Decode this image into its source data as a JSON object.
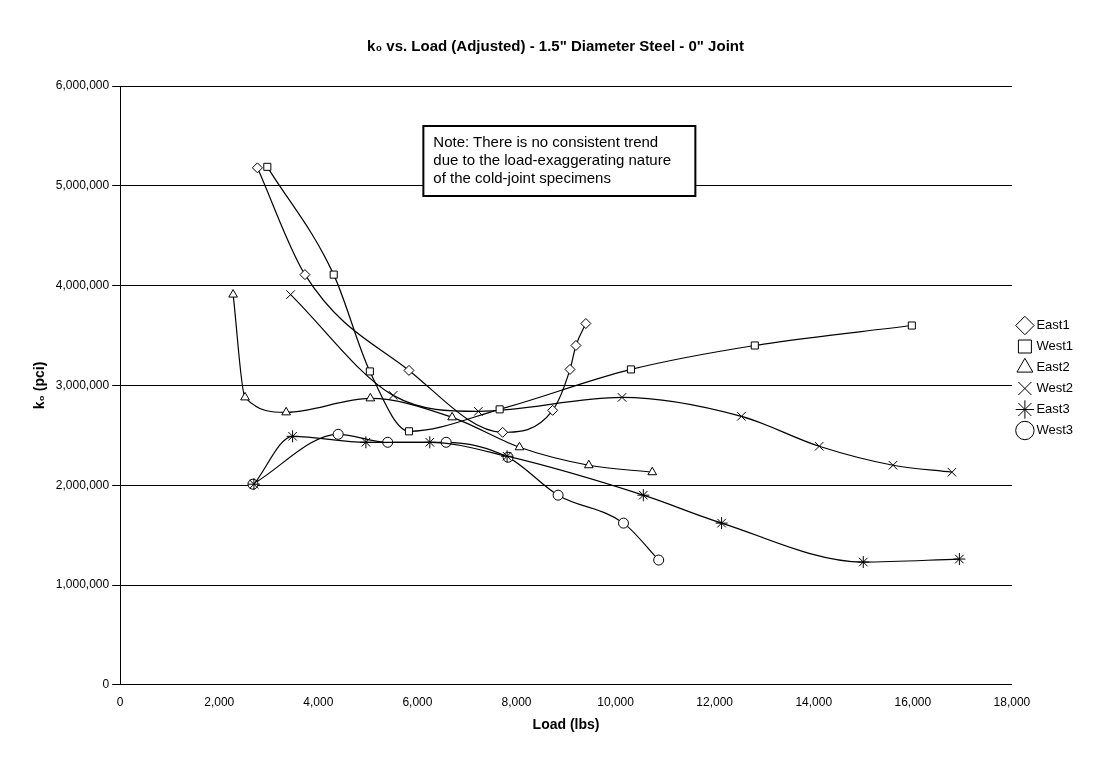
{
  "chart_data": {
    "type": "line",
    "title": "k₀ vs. Load (Adjusted) - 1.5\" Diameter Steel - 0\" Joint",
    "xlabel": "Load (lbs)",
    "ylabel": "k₀ (pci)",
    "annotations": [
      "Note: There is no consistent trend due to the load-exaggerating nature of the cold-joint specimens"
    ],
    "xlim": [
      0,
      18000
    ],
    "xticks": [
      0,
      {
        "value": 2000,
        "label": "2,000"
      },
      {
        "value": 4000,
        "label": "4,000"
      },
      {
        "value": 6000,
        "label": "6,000"
      },
      {
        "value": 8000,
        "label": "8,000"
      },
      {
        "value": 10000,
        "label": "10,000"
      },
      {
        "value": 12000,
        "label": "12,000"
      },
      {
        "value": 14000,
        "label": "14,000"
      },
      {
        "value": 16000,
        "label": "16,000"
      },
      {
        "value": 18000,
        "label": "18,000"
      }
    ],
    "ylim": [
      0,
      6000000
    ],
    "yticks": [
      0,
      {
        "value": 1000000,
        "label": "1,000,000"
      },
      {
        "value": 2000000,
        "label": "2,000,000"
      },
      {
        "value": 3000000,
        "label": "3,000,000"
      },
      {
        "value": 4000000,
        "label": "4,000,000"
      },
      {
        "value": 5000000,
        "label": "5,000,000"
      },
      {
        "value": 6000000,
        "label": "6,000,000"
      }
    ],
    "grid": "y",
    "legend": "right",
    "line_style": "solid",
    "series": [
      {
        "name": "East1",
        "color": "#000000",
        "marker": "diamond",
        "x": [
          2770,
          3730,
          5830,
          7720,
          8730,
          9080,
          9200,
          9400
        ],
        "values": [
          5180000,
          4110000,
          3150000,
          2530000,
          2750000,
          3160000,
          3400000,
          3620000
        ]
      },
      {
        "name": "West1",
        "color": "#000000",
        "marker": "square",
        "x": [
          2970,
          4310,
          5040,
          5830,
          7660,
          10310,
          12810,
          15980
        ],
        "values": [
          5190000,
          4110000,
          3140000,
          2540000,
          2760000,
          3160000,
          3400000,
          3600000
        ]
      },
      {
        "name": "East2",
        "color": "#000000",
        "marker": "triangle",
        "x": [
          2280,
          2520,
          3350,
          5050,
          6700,
          8060,
          9460,
          10740
        ],
        "values": [
          3910000,
          2880000,
          2730000,
          2870000,
          2680000,
          2380000,
          2200000,
          2130000
        ]
      },
      {
        "name": "West2",
        "color": "#000000",
        "marker": "cross",
        "x": [
          3440,
          5510,
          7230,
          10130,
          12540,
          14110,
          15600,
          16790
        ],
        "values": [
          3910000,
          2900000,
          2740000,
          2880000,
          2690000,
          2390000,
          2200000,
          2130000
        ]
      },
      {
        "name": "East3",
        "color": "#000000",
        "marker": "cross",
        "x": [
          2700,
          3480,
          4960,
          6250,
          7810,
          10560,
          12140,
          15000,
          16940
        ],
        "values": [
          2010000,
          2490000,
          2430000,
          2430000,
          2290000,
          1900000,
          1620000,
          1230000,
          1260000
        ]
      },
      {
        "name": "West3",
        "color": "#000000",
        "marker": "circle",
        "x": [
          2680,
          4400,
          5400,
          6580,
          7830,
          8840,
          10160,
          10870
        ],
        "values": [
          2010000,
          2510000,
          2430000,
          2430000,
          2280000,
          1900000,
          1620000,
          1250000
        ]
      }
    ]
  }
}
